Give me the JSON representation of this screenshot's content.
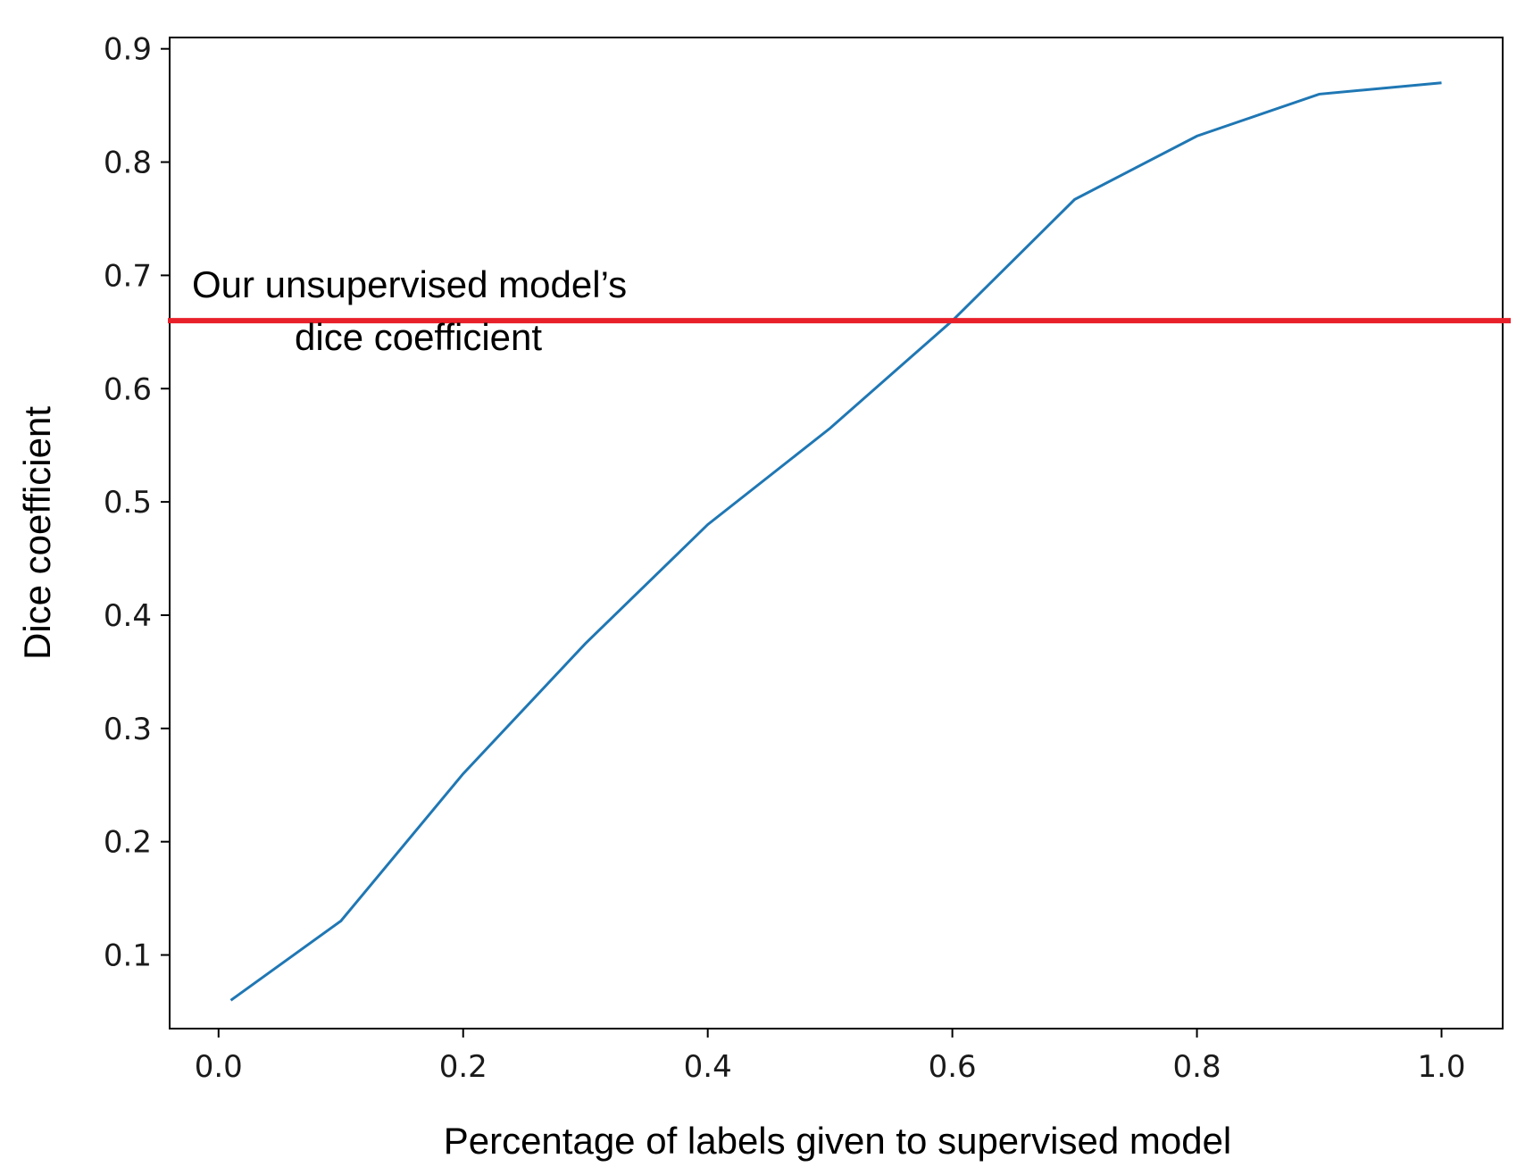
{
  "chart_data": {
    "type": "line",
    "xlabel": "Percentage of labels given to supervised model",
    "ylabel": "Dice coefficient",
    "xlim": [
      -0.04,
      1.05
    ],
    "ylim": [
      0.035,
      0.91
    ],
    "x_ticks": [
      0.0,
      0.2,
      0.4,
      0.6,
      0.8,
      1.0
    ],
    "x_tick_labels": [
      "0.0",
      "0.2",
      "0.4",
      "0.6",
      "0.8",
      "1.0"
    ],
    "y_ticks": [
      0.1,
      0.2,
      0.3,
      0.4,
      0.5,
      0.6,
      0.7,
      0.8,
      0.9
    ],
    "y_tick_labels": [
      "0.1",
      "0.2",
      "0.3",
      "0.4",
      "0.5",
      "0.6",
      "0.7",
      "0.8",
      "0.9"
    ],
    "grid": false,
    "series": [
      {
        "color": "#1f77b4",
        "x": [
          0.01,
          0.1,
          0.2,
          0.3,
          0.4,
          0.5,
          0.6,
          0.7,
          0.8,
          0.9,
          1.0
        ],
        "y": [
          0.06,
          0.13,
          0.26,
          0.375,
          0.48,
          0.565,
          0.66,
          0.767,
          0.823,
          0.86,
          0.87
        ]
      }
    ],
    "reference_line": {
      "y": 0.66,
      "color": "#e8202a",
      "label_lines": [
        "Our unsupervised model’s",
        "dice coefficient"
      ]
    }
  }
}
